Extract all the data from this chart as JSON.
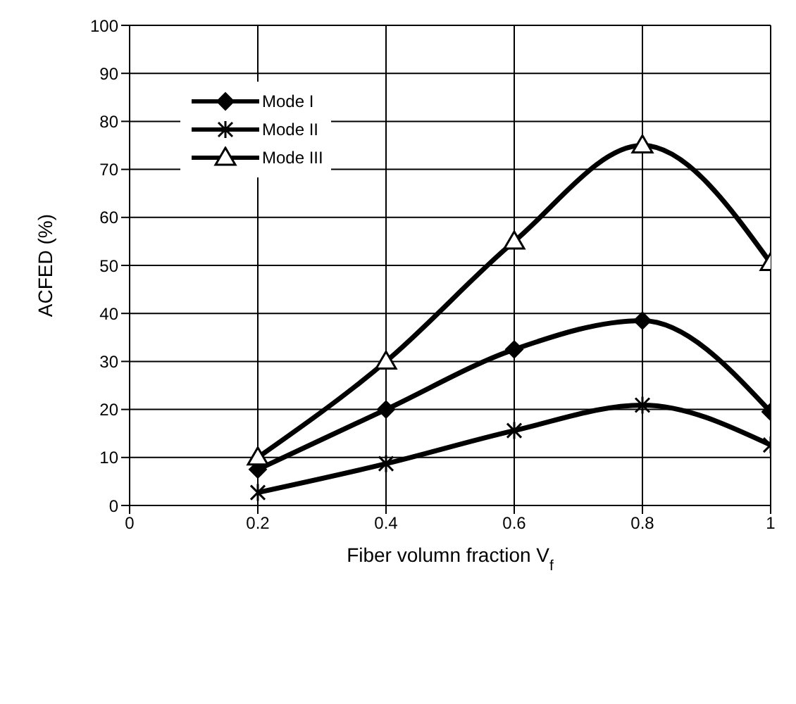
{
  "chart_data": {
    "type": "line",
    "xlabel": "Fiber volumn fraction V$_{f}$",
    "ylabel": "ACFED (%)",
    "x": [
      0.2,
      0.4,
      0.6,
      0.8,
      1
    ],
    "series": [
      {
        "name": "Mode I",
        "color": "#000000",
        "marker": "diamond",
        "values": [
          7.5,
          20,
          32.5,
          38.5,
          19.5
        ]
      },
      {
        "name": "Mode II",
        "color": "#000000",
        "marker": "cross",
        "values": [
          2.7,
          8.7,
          15.6,
          20.9,
          12.6
        ]
      },
      {
        "name": "Mode III",
        "color": "#000000",
        "marker": "triangle",
        "values": [
          10,
          30,
          55,
          75,
          50.5
        ]
      }
    ],
    "xlim": [
      0,
      1
    ],
    "xticks": [
      0,
      0.2,
      0.4,
      0.6,
      0.8,
      1
    ],
    "ylim": [
      0,
      100
    ],
    "yticks": [
      0,
      10,
      20,
      30,
      40,
      50,
      60,
      70,
      80,
      90,
      100
    ],
    "grid": true,
    "legend": "top left",
    "line_style": "solid"
  }
}
